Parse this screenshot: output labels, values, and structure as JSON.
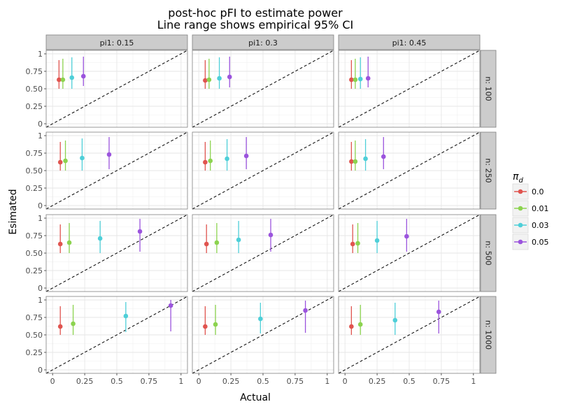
{
  "chart_data": {
    "type": "scatter",
    "title": "post-hoc pFI to estimate power",
    "subtitle": "Line range shows empirical 95% CI",
    "xlabel": "Actual",
    "ylabel": "Esimated",
    "xlim": [
      -0.05,
      1.05
    ],
    "ylim": [
      -0.05,
      1.05
    ],
    "x_ticks": [
      "0",
      "0.25",
      "0.5",
      "0.75",
      "1"
    ],
    "y_ticks": [
      "0",
      "0.25",
      "0.50",
      "0.75",
      "1"
    ],
    "grid": true,
    "reference_line": "y = x (dashed)",
    "facet_cols": [
      "pi1: 0.15",
      "pi1: 0.3",
      "pi1: 0.45"
    ],
    "facet_rows": [
      "n: 100",
      "n: 250",
      "n: 500",
      "n: 1000"
    ],
    "legend": {
      "title": "π_d",
      "title_main": "π",
      "title_sub": "d",
      "placement": "right",
      "entries": [
        {
          "label": "0.0",
          "color": "#e0544f"
        },
        {
          "label": "0.01",
          "color": "#8cd34f"
        },
        {
          "label": "0.03",
          "color": "#4ecfd8"
        },
        {
          "label": "0.05",
          "color": "#9b54dd"
        }
      ]
    },
    "panels": [
      {
        "row": 0,
        "col": 0,
        "points": [
          {
            "x": 0.05,
            "y": 0.63,
            "lo": 0.5,
            "hi": 0.91
          },
          {
            "x": 0.08,
            "y": 0.63,
            "lo": 0.5,
            "hi": 0.93
          },
          {
            "x": 0.15,
            "y": 0.66,
            "lo": 0.5,
            "hi": 0.95
          },
          {
            "x": 0.24,
            "y": 0.68,
            "lo": 0.54,
            "hi": 0.96
          }
        ]
      },
      {
        "row": 0,
        "col": 1,
        "points": [
          {
            "x": 0.05,
            "y": 0.62,
            "lo": 0.5,
            "hi": 0.91
          },
          {
            "x": 0.08,
            "y": 0.63,
            "lo": 0.5,
            "hi": 0.93
          },
          {
            "x": 0.16,
            "y": 0.65,
            "lo": 0.5,
            "hi": 0.95
          },
          {
            "x": 0.24,
            "y": 0.67,
            "lo": 0.52,
            "hi": 0.96
          }
        ]
      },
      {
        "row": 0,
        "col": 2,
        "points": [
          {
            "x": 0.05,
            "y": 0.63,
            "lo": 0.5,
            "hi": 0.91
          },
          {
            "x": 0.08,
            "y": 0.63,
            "lo": 0.5,
            "hi": 0.93
          },
          {
            "x": 0.12,
            "y": 0.64,
            "lo": 0.5,
            "hi": 0.95
          },
          {
            "x": 0.18,
            "y": 0.65,
            "lo": 0.52,
            "hi": 0.96
          }
        ]
      },
      {
        "row": 1,
        "col": 0,
        "points": [
          {
            "x": 0.06,
            "y": 0.62,
            "lo": 0.5,
            "hi": 0.91
          },
          {
            "x": 0.1,
            "y": 0.64,
            "lo": 0.5,
            "hi": 0.93
          },
          {
            "x": 0.23,
            "y": 0.68,
            "lo": 0.5,
            "hi": 0.96
          },
          {
            "x": 0.44,
            "y": 0.73,
            "lo": 0.52,
            "hi": 0.98
          }
        ]
      },
      {
        "row": 1,
        "col": 1,
        "points": [
          {
            "x": 0.05,
            "y": 0.62,
            "lo": 0.5,
            "hi": 0.91
          },
          {
            "x": 0.09,
            "y": 0.64,
            "lo": 0.5,
            "hi": 0.93
          },
          {
            "x": 0.22,
            "y": 0.67,
            "lo": 0.5,
            "hi": 0.95
          },
          {
            "x": 0.37,
            "y": 0.71,
            "lo": 0.52,
            "hi": 0.98
          }
        ]
      },
      {
        "row": 1,
        "col": 2,
        "points": [
          {
            "x": 0.05,
            "y": 0.63,
            "lo": 0.5,
            "hi": 0.91
          },
          {
            "x": 0.08,
            "y": 0.63,
            "lo": 0.5,
            "hi": 0.93
          },
          {
            "x": 0.16,
            "y": 0.67,
            "lo": 0.5,
            "hi": 0.95
          },
          {
            "x": 0.3,
            "y": 0.7,
            "lo": 0.52,
            "hi": 0.98
          }
        ]
      },
      {
        "row": 2,
        "col": 0,
        "points": [
          {
            "x": 0.06,
            "y": 0.63,
            "lo": 0.5,
            "hi": 0.91
          },
          {
            "x": 0.13,
            "y": 0.65,
            "lo": 0.5,
            "hi": 0.93
          },
          {
            "x": 0.37,
            "y": 0.71,
            "lo": 0.5,
            "hi": 0.96
          },
          {
            "x": 0.68,
            "y": 0.81,
            "lo": 0.52,
            "hi": 0.99
          }
        ]
      },
      {
        "row": 2,
        "col": 1,
        "points": [
          {
            "x": 0.06,
            "y": 0.63,
            "lo": 0.5,
            "hi": 0.91
          },
          {
            "x": 0.14,
            "y": 0.65,
            "lo": 0.5,
            "hi": 0.93
          },
          {
            "x": 0.31,
            "y": 0.69,
            "lo": 0.5,
            "hi": 0.96
          },
          {
            "x": 0.56,
            "y": 0.76,
            "lo": 0.52,
            "hi": 0.99
          }
        ]
      },
      {
        "row": 2,
        "col": 2,
        "points": [
          {
            "x": 0.06,
            "y": 0.63,
            "lo": 0.5,
            "hi": 0.91
          },
          {
            "x": 0.1,
            "y": 0.64,
            "lo": 0.5,
            "hi": 0.93
          },
          {
            "x": 0.25,
            "y": 0.68,
            "lo": 0.5,
            "hi": 0.96
          },
          {
            "x": 0.48,
            "y": 0.74,
            "lo": 0.52,
            "hi": 0.99
          }
        ]
      },
      {
        "row": 3,
        "col": 0,
        "points": [
          {
            "x": 0.06,
            "y": 0.62,
            "lo": 0.5,
            "hi": 0.91
          },
          {
            "x": 0.16,
            "y": 0.66,
            "lo": 0.5,
            "hi": 0.93
          },
          {
            "x": 0.57,
            "y": 0.77,
            "lo": 0.54,
            "hi": 0.97
          },
          {
            "x": 0.92,
            "y": 0.92,
            "lo": 0.55,
            "hi": 1.0
          }
        ]
      },
      {
        "row": 3,
        "col": 1,
        "points": [
          {
            "x": 0.05,
            "y": 0.62,
            "lo": 0.5,
            "hi": 0.91
          },
          {
            "x": 0.13,
            "y": 0.65,
            "lo": 0.5,
            "hi": 0.93
          },
          {
            "x": 0.48,
            "y": 0.73,
            "lo": 0.52,
            "hi": 0.96
          },
          {
            "x": 0.83,
            "y": 0.85,
            "lo": 0.53,
            "hi": 0.99
          }
        ]
      },
      {
        "row": 3,
        "col": 2,
        "points": [
          {
            "x": 0.05,
            "y": 0.62,
            "lo": 0.5,
            "hi": 0.91
          },
          {
            "x": 0.12,
            "y": 0.65,
            "lo": 0.5,
            "hi": 0.93
          },
          {
            "x": 0.39,
            "y": 0.71,
            "lo": 0.5,
            "hi": 0.96
          },
          {
            "x": 0.73,
            "y": 0.83,
            "lo": 0.52,
            "hi": 0.99
          }
        ]
      }
    ]
  }
}
